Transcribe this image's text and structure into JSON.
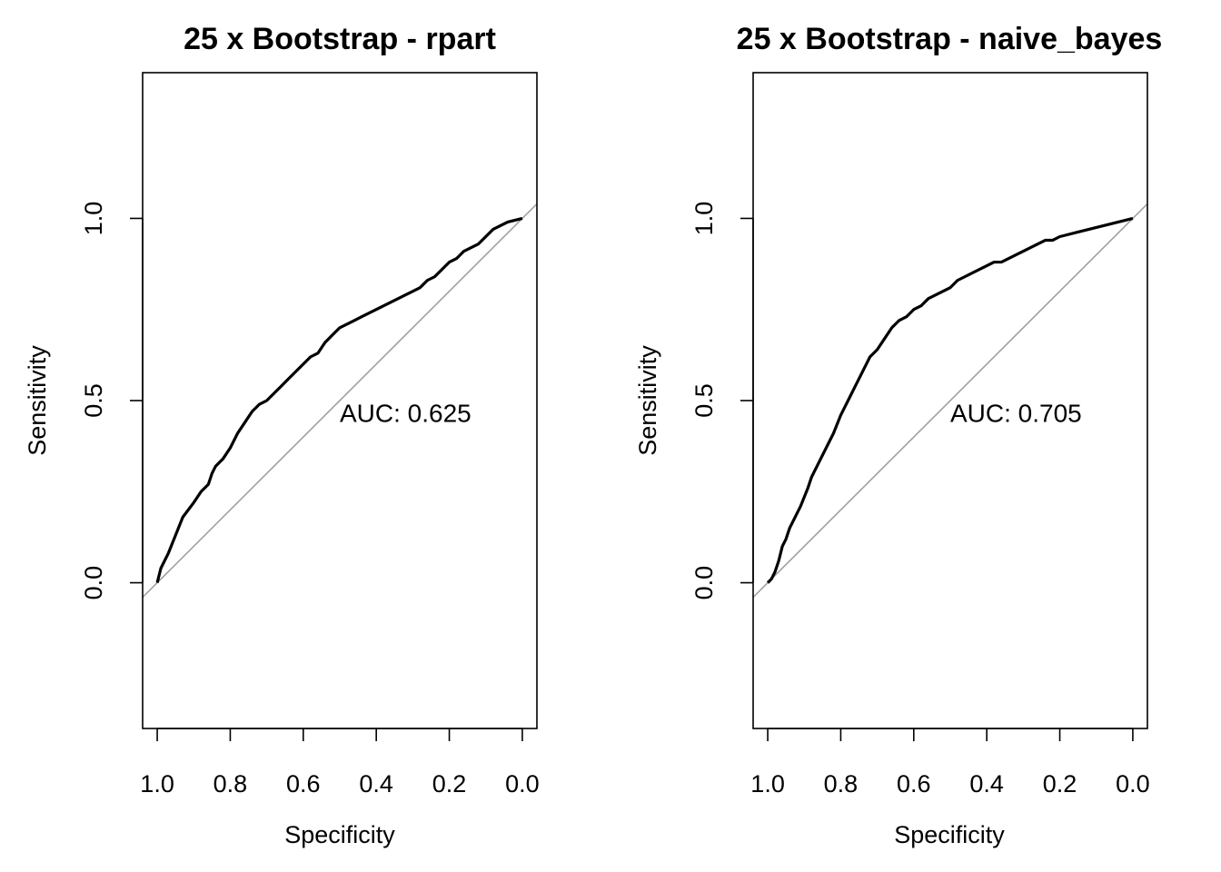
{
  "chart_data": [
    {
      "type": "line",
      "title": "25 x Bootstrap - rpart",
      "xlabel": "Specificity",
      "ylabel": "Sensitivity",
      "x_reversed": true,
      "xlim": [
        1.04,
        -0.04
      ],
      "ylim": [
        -0.4,
        1.4
      ],
      "xticks": [
        "1.0",
        "0.8",
        "0.6",
        "0.4",
        "0.2",
        "0.0"
      ],
      "yticks": [
        "0.0",
        "0.5",
        "1.0"
      ],
      "reference_line": {
        "from": [
          1,
          0
        ],
        "to": [
          0,
          1
        ],
        "color": "#a0a0a0"
      },
      "annotation": {
        "text": "AUC: 0.625",
        "x": 0.5,
        "y": 0.46
      },
      "series": [
        {
          "color": "#000000",
          "specificity": [
            1.0,
            0.99,
            0.97,
            0.95,
            0.93,
            0.9,
            0.88,
            0.86,
            0.85,
            0.84,
            0.82,
            0.8,
            0.78,
            0.76,
            0.74,
            0.72,
            0.7,
            0.68,
            0.66,
            0.64,
            0.62,
            0.6,
            0.58,
            0.56,
            0.54,
            0.52,
            0.5,
            0.48,
            0.46,
            0.44,
            0.42,
            0.4,
            0.38,
            0.36,
            0.34,
            0.32,
            0.3,
            0.28,
            0.26,
            0.24,
            0.22,
            0.2,
            0.18,
            0.16,
            0.14,
            0.12,
            0.1,
            0.08,
            0.06,
            0.04,
            0.02,
            0.0
          ],
          "sensitivity": [
            0.0,
            0.04,
            0.08,
            0.13,
            0.18,
            0.22,
            0.25,
            0.27,
            0.3,
            0.32,
            0.34,
            0.37,
            0.41,
            0.44,
            0.47,
            0.49,
            0.5,
            0.52,
            0.54,
            0.56,
            0.58,
            0.6,
            0.62,
            0.63,
            0.66,
            0.68,
            0.7,
            0.71,
            0.72,
            0.73,
            0.74,
            0.75,
            0.76,
            0.77,
            0.78,
            0.79,
            0.8,
            0.81,
            0.83,
            0.84,
            0.86,
            0.88,
            0.89,
            0.91,
            0.92,
            0.93,
            0.95,
            0.97,
            0.98,
            0.99,
            0.995,
            1.0
          ]
        }
      ]
    },
    {
      "type": "line",
      "title": "25 x Bootstrap - naive_bayes",
      "xlabel": "Specificity",
      "ylabel": "Sensitivity",
      "x_reversed": true,
      "xlim": [
        1.04,
        -0.04
      ],
      "ylim": [
        -0.4,
        1.4
      ],
      "xticks": [
        "1.0",
        "0.8",
        "0.6",
        "0.4",
        "0.2",
        "0.0"
      ],
      "yticks": [
        "0.0",
        "0.5",
        "1.0"
      ],
      "reference_line": {
        "from": [
          1,
          0
        ],
        "to": [
          0,
          1
        ],
        "color": "#a0a0a0"
      },
      "annotation": {
        "text": "AUC: 0.705",
        "x": 0.5,
        "y": 0.46
      },
      "series": [
        {
          "color": "#000000",
          "specificity": [
            1.0,
            0.99,
            0.98,
            0.97,
            0.96,
            0.95,
            0.94,
            0.92,
            0.91,
            0.89,
            0.88,
            0.86,
            0.84,
            0.82,
            0.8,
            0.78,
            0.76,
            0.74,
            0.72,
            0.7,
            0.68,
            0.66,
            0.64,
            0.62,
            0.6,
            0.58,
            0.56,
            0.54,
            0.52,
            0.5,
            0.48,
            0.46,
            0.44,
            0.42,
            0.4,
            0.38,
            0.36,
            0.34,
            0.32,
            0.3,
            0.28,
            0.26,
            0.24,
            0.22,
            0.2,
            0.18,
            0.16,
            0.14,
            0.12,
            0.1,
            0.08,
            0.06,
            0.04,
            0.02,
            0.0
          ],
          "sensitivity": [
            0.0,
            0.01,
            0.03,
            0.06,
            0.1,
            0.12,
            0.15,
            0.19,
            0.21,
            0.26,
            0.29,
            0.33,
            0.37,
            0.41,
            0.46,
            0.5,
            0.54,
            0.58,
            0.62,
            0.64,
            0.67,
            0.7,
            0.72,
            0.73,
            0.75,
            0.76,
            0.78,
            0.79,
            0.8,
            0.81,
            0.83,
            0.84,
            0.85,
            0.86,
            0.87,
            0.88,
            0.88,
            0.89,
            0.9,
            0.91,
            0.92,
            0.93,
            0.94,
            0.94,
            0.95,
            0.955,
            0.96,
            0.965,
            0.97,
            0.975,
            0.98,
            0.985,
            0.99,
            0.995,
            1.0
          ]
        }
      ]
    }
  ]
}
